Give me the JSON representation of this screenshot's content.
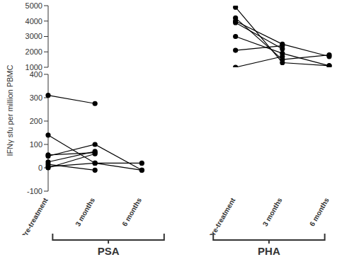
{
  "chart_data": {
    "type": "line",
    "ylabel": "IFNγ sfu per million PBMC",
    "categories": [
      "Pre-treatment",
      "3 months",
      "6 months",
      null,
      "Pre-treatment",
      "3 months",
      "6 months"
    ],
    "groups": [
      "PSA",
      "PHA"
    ],
    "marker": "circle",
    "color": "#000000",
    "panels": [
      {
        "ylim": [
          1000,
          5000
        ],
        "yticks": [
          1000,
          2000,
          3000,
          4000,
          5000
        ],
        "series": [
          {
            "values": [
              null,
              null,
              null,
              null,
              4900,
              1300,
              1100
            ]
          },
          {
            "values": [
              null,
              null,
              null,
              null,
              4200,
              1500,
              1800
            ]
          },
          {
            "values": [
              null,
              null,
              null,
              null,
              4000,
              2500,
              1700
            ]
          },
          {
            "values": [
              null,
              null,
              null,
              null,
              3900,
              2200,
              null
            ]
          },
          {
            "values": [
              null,
              null,
              null,
              null,
              3000,
              1900,
              1100
            ]
          },
          {
            "values": [
              null,
              null,
              null,
              null,
              2100,
              2400,
              null
            ]
          },
          {
            "values": [
              null,
              null,
              null,
              null,
              1000,
              1700,
              null
            ]
          }
        ]
      },
      {
        "ylim": [
          -100,
          400
        ],
        "yticks": [
          -100,
          0,
          100,
          200,
          300,
          400
        ],
        "series": [
          {
            "values": [
              310,
              275,
              null,
              null,
              null,
              null,
              null
            ]
          },
          {
            "values": [
              140,
              20,
              -10,
              null,
              null,
              null,
              null
            ]
          },
          {
            "values": [
              55,
              65,
              null,
              null,
              null,
              null,
              null
            ]
          },
          {
            "values": [
              50,
              100,
              -10,
              null,
              null,
              null,
              null
            ]
          },
          {
            "values": [
              25,
              70,
              null,
              null,
              null,
              null,
              null
            ]
          },
          {
            "values": [
              15,
              -10,
              null,
              null,
              null,
              null,
              null
            ]
          },
          {
            "values": [
              5,
              20,
              20,
              null,
              null,
              null,
              null
            ]
          },
          {
            "values": [
              0,
              60,
              null,
              null,
              null,
              null,
              null
            ]
          }
        ]
      }
    ]
  }
}
